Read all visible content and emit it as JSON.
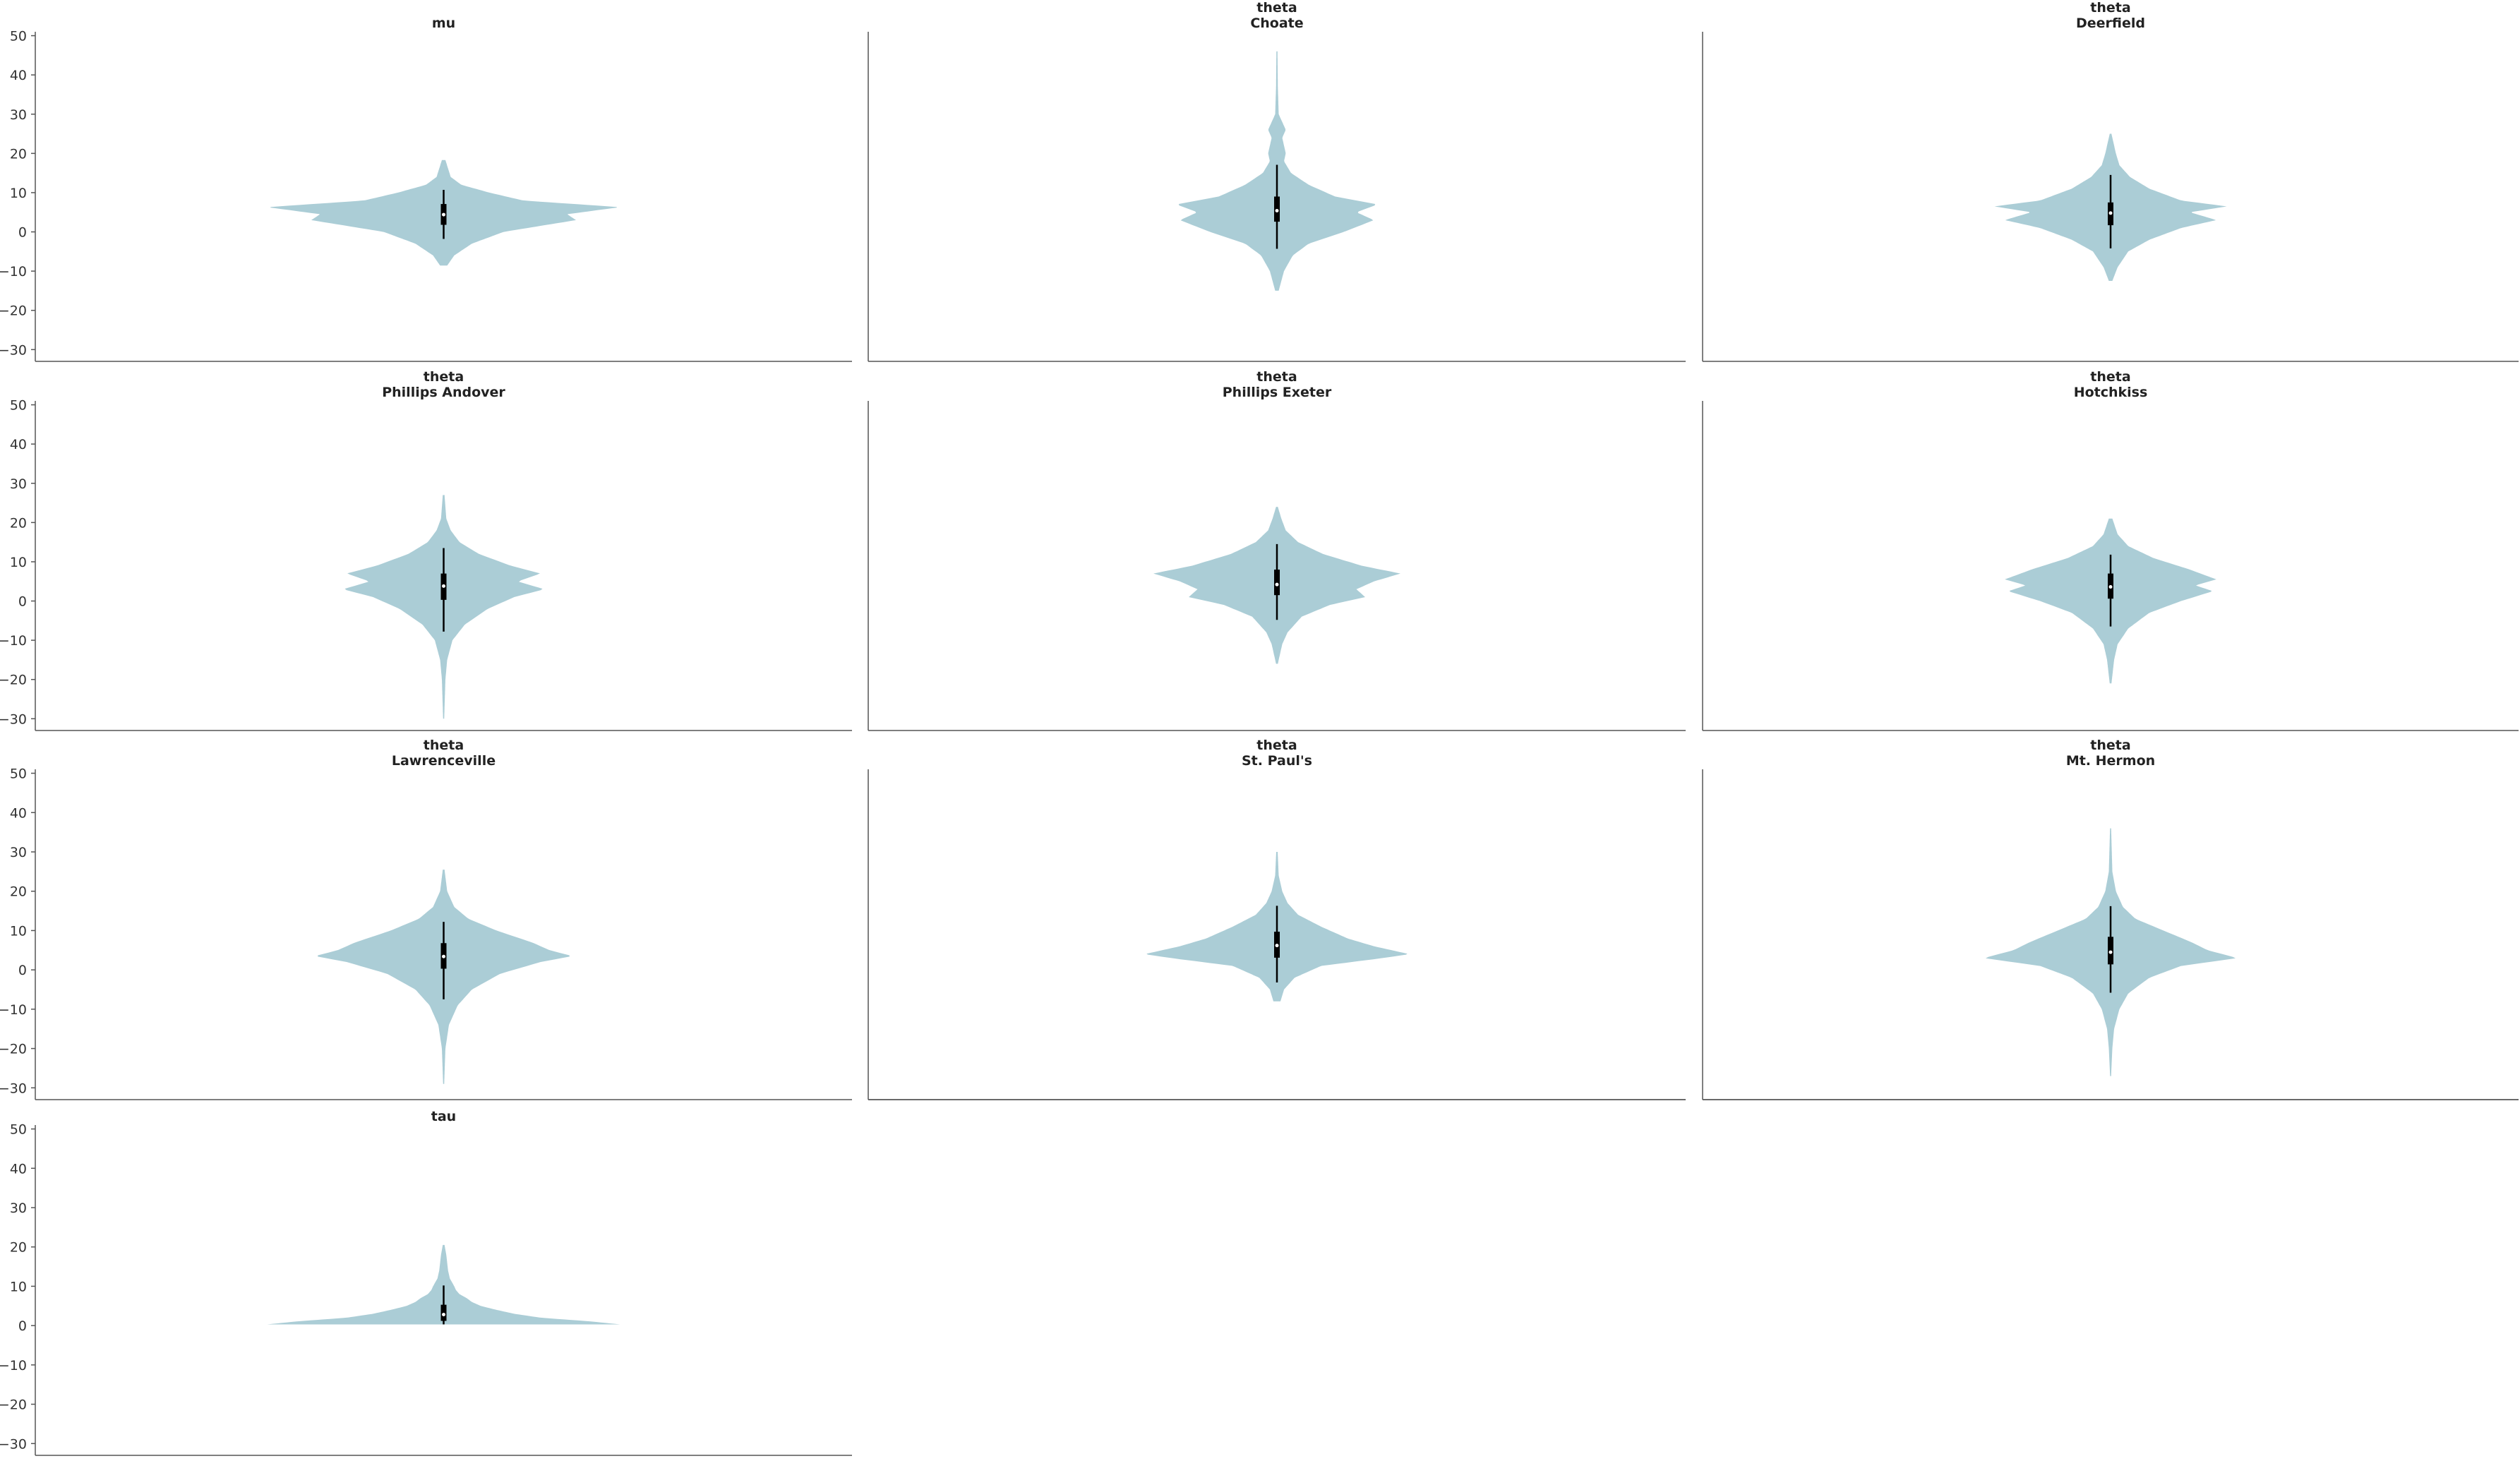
{
  "chart_data": {
    "type": "violin",
    "sharey": true,
    "ylim": [
      -33,
      51
    ],
    "yticks": [
      -30,
      -20,
      -10,
      0,
      10,
      20,
      30,
      40,
      50
    ],
    "ytick_labels": [
      "−30",
      "−20",
      "−10",
      "0",
      "10",
      "20",
      "30",
      "40",
      "50"
    ],
    "grid": false,
    "colors": {
      "violin": "#abcdd6",
      "interval": "#000000",
      "median": "#ffffff",
      "axis": "#555555"
    },
    "panels": [
      {
        "id": "mu",
        "title": [
          "mu"
        ],
        "median": 4.4,
        "q1": 1.8,
        "q3": 7.1,
        "hdi": [
          -1.8,
          10.7
        ],
        "min": -8.6,
        "max": 18.3,
        "shape": [
          [
            -8.6,
            0.02
          ],
          [
            -6,
            0.06
          ],
          [
            -3,
            0.16
          ],
          [
            0,
            0.34
          ],
          [
            3,
            0.75
          ],
          [
            4.5,
            0.7
          ],
          [
            6.3,
            1.0
          ],
          [
            8,
            0.45
          ],
          [
            10,
            0.26
          ],
          [
            12,
            0.1
          ],
          [
            14,
            0.04
          ],
          [
            18.3,
            0.01
          ]
        ]
      },
      {
        "id": "choate",
        "title": [
          "theta",
          "Choate"
        ],
        "median": 5.4,
        "q1": 2.6,
        "q3": 9.0,
        "hdi": [
          -4.3,
          17.1
        ],
        "min": -15,
        "max": 46,
        "shape": [
          [
            -15,
            0.01
          ],
          [
            -10,
            0.04
          ],
          [
            -6,
            0.09
          ],
          [
            -3,
            0.18
          ],
          [
            0,
            0.38
          ],
          [
            3,
            0.55
          ],
          [
            5,
            0.45
          ],
          [
            7,
            0.57
          ],
          [
            9,
            0.33
          ],
          [
            12,
            0.18
          ],
          [
            15,
            0.08
          ],
          [
            18,
            0.04
          ],
          [
            20,
            0.05
          ],
          [
            24,
            0.03
          ],
          [
            26,
            0.05
          ],
          [
            30,
            0.01
          ],
          [
            37,
            0.005
          ],
          [
            46,
            0.003
          ]
        ]
      },
      {
        "id": "deerfield",
        "title": [
          "theta",
          "Deerfield"
        ],
        "median": 4.8,
        "q1": 1.7,
        "q3": 7.5,
        "hdi": [
          -4.2,
          14.5
        ],
        "min": -12.5,
        "max": 25,
        "shape": [
          [
            -12.5,
            0.01
          ],
          [
            -9,
            0.04
          ],
          [
            -5,
            0.1
          ],
          [
            -2,
            0.22
          ],
          [
            1,
            0.4
          ],
          [
            3,
            0.6
          ],
          [
            5,
            0.45
          ],
          [
            6.5,
            0.66
          ],
          [
            8,
            0.4
          ],
          [
            11,
            0.22
          ],
          [
            14,
            0.11
          ],
          [
            17,
            0.05
          ],
          [
            20,
            0.03
          ],
          [
            25,
            0.005
          ]
        ]
      },
      {
        "id": "phillips-andover",
        "title": [
          "theta",
          "Phillips Andover"
        ],
        "median": 3.8,
        "q1": 0.3,
        "q3": 7.0,
        "hdi": [
          -7.8,
          13.5
        ],
        "min": -30,
        "max": 27,
        "shape": [
          [
            -30,
            0.003
          ],
          [
            -20,
            0.01
          ],
          [
            -15,
            0.02
          ],
          [
            -10,
            0.05
          ],
          [
            -6,
            0.12
          ],
          [
            -2,
            0.25
          ],
          [
            1,
            0.4
          ],
          [
            3,
            0.57
          ],
          [
            5,
            0.42
          ],
          [
            7,
            0.55
          ],
          [
            9,
            0.38
          ],
          [
            12,
            0.2
          ],
          [
            15,
            0.09
          ],
          [
            18,
            0.04
          ],
          [
            21,
            0.015
          ],
          [
            27,
            0.005
          ]
        ]
      },
      {
        "id": "phillips-exeter",
        "title": [
          "theta",
          "Phillips Exeter"
        ],
        "median": 4.2,
        "q1": 1.5,
        "q3": 8.0,
        "hdi": [
          -4.8,
          14.5
        ],
        "min": -16,
        "max": 24,
        "shape": [
          [
            -16,
            0.005
          ],
          [
            -11,
            0.03
          ],
          [
            -8,
            0.06
          ],
          [
            -4,
            0.14
          ],
          [
            -1,
            0.3
          ],
          [
            1,
            0.5
          ],
          [
            3,
            0.45
          ],
          [
            5,
            0.55
          ],
          [
            7,
            0.7
          ],
          [
            9,
            0.48
          ],
          [
            12,
            0.26
          ],
          [
            15,
            0.12
          ],
          [
            18,
            0.05
          ],
          [
            21,
            0.025
          ],
          [
            24,
            0.005
          ]
        ]
      },
      {
        "id": "hotchkiss",
        "title": [
          "theta",
          "Hotchkiss"
        ],
        "median": 3.6,
        "q1": 0.6,
        "q3": 7.0,
        "hdi": [
          -6.5,
          11.8
        ],
        "min": -21,
        "max": 21,
        "shape": [
          [
            -21,
            0.005
          ],
          [
            -15,
            0.02
          ],
          [
            -11,
            0.04
          ],
          [
            -7,
            0.1
          ],
          [
            -3,
            0.22
          ],
          [
            0,
            0.4
          ],
          [
            2.5,
            0.58
          ],
          [
            4,
            0.48
          ],
          [
            5.5,
            0.6
          ],
          [
            8,
            0.45
          ],
          [
            11,
            0.24
          ],
          [
            14,
            0.1
          ],
          [
            17,
            0.04
          ],
          [
            21,
            0.01
          ]
        ]
      },
      {
        "id": "lawrenceville",
        "title": [
          "theta",
          "Lawrenceville"
        ],
        "median": 3.4,
        "q1": 0.3,
        "q3": 6.8,
        "hdi": [
          -7.5,
          12.2
        ],
        "min": -29,
        "max": 25.5,
        "shape": [
          [
            -29,
            0.003
          ],
          [
            -20,
            0.01
          ],
          [
            -14,
            0.03
          ],
          [
            -9,
            0.08
          ],
          [
            -5,
            0.16
          ],
          [
            -1,
            0.32
          ],
          [
            2,
            0.55
          ],
          [
            3.5,
            0.73
          ],
          [
            5,
            0.6
          ],
          [
            7,
            0.5
          ],
          [
            10,
            0.3
          ],
          [
            13,
            0.14
          ],
          [
            16,
            0.06
          ],
          [
            20,
            0.02
          ],
          [
            25.5,
            0.005
          ]
        ]
      },
      {
        "id": "st-pauls",
        "title": [
          "theta",
          "St. Paul's"
        ],
        "median": 6.2,
        "q1": 3.1,
        "q3": 9.7,
        "hdi": [
          -3.2,
          16.3
        ],
        "min": -8,
        "max": 30,
        "shape": [
          [
            -8,
            0.02
          ],
          [
            -5,
            0.04
          ],
          [
            -2,
            0.1
          ],
          [
            1,
            0.25
          ],
          [
            3,
            0.6
          ],
          [
            4,
            0.75
          ],
          [
            6,
            0.55
          ],
          [
            8,
            0.4
          ],
          [
            11,
            0.25
          ],
          [
            14,
            0.12
          ],
          [
            17,
            0.06
          ],
          [
            20,
            0.03
          ],
          [
            24,
            0.01
          ],
          [
            30,
            0.004
          ]
        ]
      },
      {
        "id": "mt-hermon",
        "title": [
          "theta",
          "Mt. Hermon"
        ],
        "median": 4.5,
        "q1": 1.4,
        "q3": 8.4,
        "hdi": [
          -5.8,
          16.2
        ],
        "min": -27,
        "max": 36,
        "shape": [
          [
            -27,
            0.003
          ],
          [
            -20,
            0.01
          ],
          [
            -15,
            0.02
          ],
          [
            -10,
            0.05
          ],
          [
            -6,
            0.1
          ],
          [
            -2,
            0.22
          ],
          [
            1,
            0.4
          ],
          [
            3,
            0.72
          ],
          [
            5,
            0.55
          ],
          [
            7,
            0.46
          ],
          [
            10,
            0.3
          ],
          [
            13,
            0.14
          ],
          [
            16,
            0.07
          ],
          [
            20,
            0.03
          ],
          [
            25,
            0.01
          ],
          [
            36,
            0.003
          ]
        ]
      },
      {
        "id": "tau",
        "title": [
          "tau"
        ],
        "median": 2.8,
        "q1": 1.2,
        "q3": 5.3,
        "hdi": [
          0.3,
          10.2
        ],
        "min": 0.3,
        "max": 20.5,
        "shape": [
          [
            0.3,
            1.0
          ],
          [
            1,
            0.85
          ],
          [
            2,
            0.55
          ],
          [
            3,
            0.4
          ],
          [
            4,
            0.3
          ],
          [
            5,
            0.21
          ],
          [
            6,
            0.16
          ],
          [
            7,
            0.13
          ],
          [
            8,
            0.09
          ],
          [
            9,
            0.07
          ],
          [
            10,
            0.06
          ],
          [
            12,
            0.035
          ],
          [
            14,
            0.025
          ],
          [
            16,
            0.02
          ],
          [
            18,
            0.015
          ],
          [
            20.5,
            0.005
          ]
        ]
      }
    ]
  }
}
